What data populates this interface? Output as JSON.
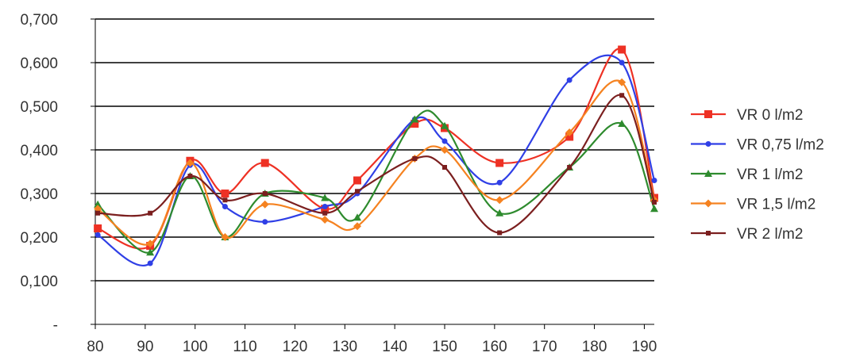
{
  "chart_data": {
    "type": "line",
    "title": "",
    "xlabel": "",
    "ylabel": "",
    "xlim": [
      80,
      192
    ],
    "ylim": [
      0,
      0.7
    ],
    "x_ticks": [
      80,
      90,
      100,
      110,
      120,
      130,
      140,
      150,
      160,
      170,
      180,
      190
    ],
    "y_ticks": [
      0,
      0.1,
      0.2,
      0.3,
      0.4,
      0.5,
      0.6,
      0.7
    ],
    "y_tick_labels": [
      "-",
      "0,100",
      "0,200",
      "0,300",
      "0,400",
      "0,500",
      "0,600",
      "0,700"
    ],
    "x_tick_labels": [
      "80",
      "90",
      "100",
      "110",
      "120",
      "130",
      "140",
      "150",
      "160",
      "170",
      "180",
      "190"
    ],
    "grid": "horizontal",
    "legend_position": "right",
    "x": [
      80.5,
      91,
      99,
      106,
      114,
      126,
      132.5,
      144,
      150,
      161,
      175,
      185.5,
      192
    ],
    "series": [
      {
        "name": "VR 0 l/m2",
        "color": "#ee3124",
        "marker": "square",
        "values": [
          0.22,
          0.18,
          0.375,
          0.3,
          0.37,
          0.265,
          0.33,
          0.46,
          0.45,
          0.37,
          0.43,
          0.63,
          0.29
        ]
      },
      {
        "name": "VR 0,75 l/m2",
        "color": "#2f3fe6",
        "marker": "circle",
        "values": [
          0.205,
          0.14,
          0.365,
          0.27,
          0.235,
          0.27,
          0.3,
          0.47,
          0.42,
          0.325,
          0.56,
          0.6,
          0.33
        ]
      },
      {
        "name": "VR 1 l/m2",
        "color": "#2e8b2e",
        "marker": "triangle",
        "values": [
          0.275,
          0.165,
          0.34,
          0.2,
          0.3,
          0.29,
          0.245,
          0.47,
          0.455,
          0.255,
          0.36,
          0.46,
          0.265
        ]
      },
      {
        "name": "VR 1,5 l/m2",
        "color": "#f58220",
        "marker": "diamond",
        "values": [
          0.265,
          0.185,
          0.37,
          0.2,
          0.275,
          0.24,
          0.225,
          0.38,
          0.4,
          0.285,
          0.44,
          0.555,
          0.285
        ]
      },
      {
        "name": "VR 2 l/m2",
        "color": "#7b1f1f",
        "marker": "dash",
        "values": [
          0.255,
          0.255,
          0.34,
          0.285,
          0.3,
          0.255,
          0.305,
          0.38,
          0.36,
          0.21,
          0.36,
          0.525,
          0.28
        ]
      }
    ]
  }
}
